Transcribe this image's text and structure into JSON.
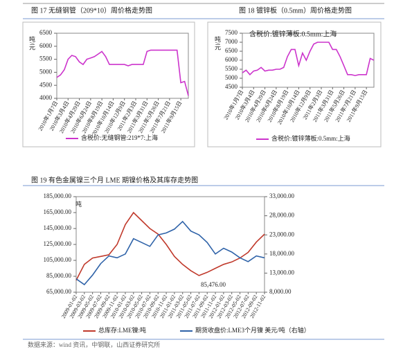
{
  "chart_data": [
    {
      "type": "line",
      "title": "图 17 无缝钢管（209*10）周价格走势图",
      "y_label": "吨/元",
      "ylim": [
        4000,
        6500
      ],
      "yticks": [
        4000,
        4500,
        5000,
        5500,
        6000,
        6500
      ],
      "categories": [
        "2010年1月7日",
        null,
        null,
        "2010年3月4日",
        null,
        null,
        "2010年4月29日",
        null,
        null,
        "2010年6月24日",
        null,
        null,
        "2010年8月19日",
        null,
        null,
        "2010年10月14日",
        null,
        null,
        "2010年12月9日",
        null,
        null,
        "2011年2月3日",
        null,
        null,
        "2011年3月31日",
        null,
        null,
        "2011年5月26日",
        null,
        null,
        "2011年7月21日",
        null,
        null,
        "2011年9月15日",
        null,
        null
      ],
      "series": [
        {
          "name": "含税价:无缝钢管:219*7:上海",
          "color": "#cc33cc",
          "values": [
            4800,
            4900,
            5100,
            5500,
            5650,
            5600,
            5400,
            5300,
            5500,
            5550,
            5600,
            5700,
            5800,
            5600,
            5300,
            5300,
            5300,
            5300,
            5300,
            5250,
            5300,
            5300,
            5300,
            5300,
            5800,
            5850,
            5850,
            5850,
            5850,
            5850,
            5850,
            5850,
            5850,
            4600,
            4650,
            4100
          ]
        }
      ]
    },
    {
      "type": "line",
      "title": "图 18 镀锌板（0.5mm）周价格走势图",
      "y_label": "吨/元",
      "inner_title": "含税价:镀锌薄板:0.5mm:上海",
      "ylim": [
        4500,
        7500
      ],
      "yticks": [
        4500,
        5000,
        5500,
        6000,
        6500,
        7000,
        7500
      ],
      "categories": [
        "2010年1月7日",
        null,
        null,
        "2010年3月4日",
        null,
        null,
        "2010年4月29日",
        null,
        null,
        "2010年6月24日",
        null,
        null,
        "2010年8月19日",
        null,
        null,
        "2010年10月14日",
        null,
        null,
        "2010年12月9日",
        null,
        null,
        "2011年2月3日",
        null,
        null,
        "2011年3月31日",
        null,
        null,
        "2011年5月26日",
        null,
        null,
        "2011年7月21日",
        null,
        null,
        "2011年9月15日",
        null,
        null
      ],
      "series": [
        {
          "name": "含税价:镀锌薄板:0.5mm:上海",
          "color": "#cc33cc",
          "values": [
            5300,
            5450,
            5200,
            5400,
            5450,
            5600,
            5400,
            5450,
            5450,
            5500,
            5500,
            5600,
            6200,
            6600,
            6600,
            5700,
            6400,
            6000,
            6500,
            6900,
            7000,
            7000,
            7000,
            7000,
            6600,
            6600,
            6200,
            5700,
            5200,
            5200,
            5150,
            5200,
            5200,
            5200,
            6100,
            6000
          ]
        }
      ]
    },
    {
      "type": "line",
      "title": "图 19 有色金属镍三个月 LME 期镍价格及其库存走势图",
      "y_label": "吨",
      "annotation": "85,476.00",
      "ylim": [
        65000,
        185000
      ],
      "yticks": [
        {
          "value": 65000,
          "label": "65,000.00"
        },
        {
          "value": 85000,
          "label": "85,000.00"
        },
        {
          "value": 105000,
          "label": "105,000.00"
        },
        {
          "value": 125000,
          "label": "125,000.00"
        },
        {
          "value": 145000,
          "label": "145,000.00"
        },
        {
          "value": 165000,
          "label": "165,000.00"
        },
        {
          "value": 185000,
          "label": "185,000.00"
        }
      ],
      "y2lim": [
        8000,
        33000
      ],
      "y2ticks": [
        {
          "value": 8000,
          "label": "8,000.00"
        },
        {
          "value": 13000,
          "label": "13,000.00"
        },
        {
          "value": 18000,
          "label": "18,000.00"
        },
        {
          "value": 23000,
          "label": "23,000.00"
        },
        {
          "value": 28000,
          "label": "28,000.00"
        },
        {
          "value": 33000,
          "label": "33,000.00"
        }
      ],
      "categories": [
        "2009-01-02",
        "2009-03-02",
        "2009-05-02",
        "2009-07-02",
        "2009-09-02",
        "2009-11-02",
        "2010-01-02",
        "2010-03-02",
        "2010-05-02",
        "2010-07-02",
        "2010-09-02",
        "2010-11-02",
        "2011-01-02",
        "2011-03-02",
        "2011-05-02",
        "2011-07-02",
        "2011-09-02",
        "2011-11-02",
        "2012-01-02",
        "2012-03-02",
        "2012-05-02",
        "2012-07-02",
        "2012-09-02",
        "2012-11-02"
      ],
      "series": [
        {
          "name": "总库存:LME镍:吨",
          "color": "#c0392b",
          "values": [
            80000,
            100000,
            108000,
            110000,
            112000,
            125000,
            150000,
            165000,
            155000,
            145000,
            138000,
            125000,
            110000,
            100000,
            92000,
            86000,
            90000,
            95000,
            100000,
            103000,
            108000,
            115000,
            128000,
            138000
          ]
        },
        {
          "name": "期货收盘价:LME3个月镍 美元/吨（右轴）",
          "color": "#2e62a8",
          "axis": "y2",
          "values": [
            11500,
            10000,
            12500,
            15500,
            17500,
            17000,
            18000,
            22000,
            21000,
            20000,
            23000,
            23500,
            24500,
            26500,
            24000,
            23000,
            21000,
            18000,
            19500,
            18500,
            17000,
            16000,
            17500,
            17000
          ]
        }
      ]
    }
  ],
  "source": "数据来源：wind 资讯，中钢联，山西证券研究所"
}
